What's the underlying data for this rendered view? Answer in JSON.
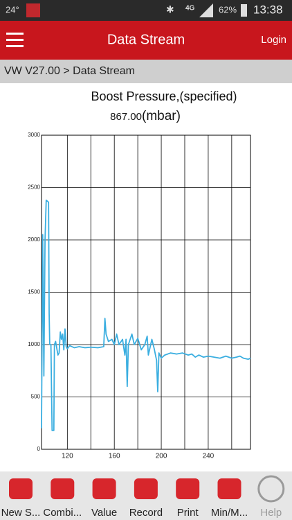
{
  "status_bar": {
    "temperature": "24°",
    "network": "4G",
    "battery": "62%",
    "time": "13:38"
  },
  "header": {
    "title": "Data Stream",
    "login": "Login"
  },
  "breadcrumb": "VW V27.00 > Data Stream",
  "reading": {
    "value": "867.00",
    "unit": "(mbar)"
  },
  "chart_data": {
    "type": "line",
    "title": "Boost Pressure,(specified)",
    "x": [
      98,
      99,
      100,
      101,
      102,
      104,
      104.5,
      105,
      106,
      107,
      108.5,
      109,
      110,
      112,
      113,
      114,
      115,
      116,
      117,
      118,
      119,
      120,
      122,
      126,
      130,
      135,
      140,
      146,
      151,
      152,
      153,
      155,
      158,
      160,
      162,
      164,
      167,
      169,
      170,
      171,
      172,
      175,
      177,
      180,
      183,
      186,
      188,
      189,
      192,
      194,
      196,
      197,
      198,
      200,
      203,
      208,
      213,
      218,
      223,
      226,
      229,
      232,
      236,
      240,
      245,
      250,
      255,
      260,
      264,
      267,
      270,
      274,
      276
    ],
    "y": [
      200,
      2050,
      700,
      2000,
      2380,
      2360,
      1300,
      1000,
      1000,
      180,
      180,
      1000,
      1030,
      900,
      920,
      1120,
      1050,
      1100,
      950,
      1150,
      980,
      960,
      990,
      970,
      980,
      970,
      975,
      970,
      980,
      1250,
      1100,
      1030,
      1050,
      1000,
      1100,
      1000,
      1050,
      900,
      1050,
      600,
      1000,
      1100,
      1000,
      1060,
      950,
      1000,
      1080,
      900,
      1050,
      960,
      850,
      550,
      920,
      870,
      900,
      920,
      910,
      920,
      900,
      910,
      880,
      900,
      880,
      890,
      880,
      870,
      890,
      870,
      880,
      890,
      870,
      860,
      870
    ],
    "color": "#3aaee0",
    "xlim": [
      98,
      276
    ],
    "xticks": [
      120,
      160,
      200,
      240
    ],
    "x_minor_ticks": [
      140,
      180,
      220,
      260
    ],
    "ylim": [
      0,
      3000
    ],
    "yticks": [
      0,
      500,
      1000,
      1500,
      2000,
      2500,
      3000
    ],
    "grid": true
  },
  "toolbar": [
    "New S...",
    "Combi...",
    "Value",
    "Record",
    "Print",
    "Min/M...",
    "Help"
  ]
}
